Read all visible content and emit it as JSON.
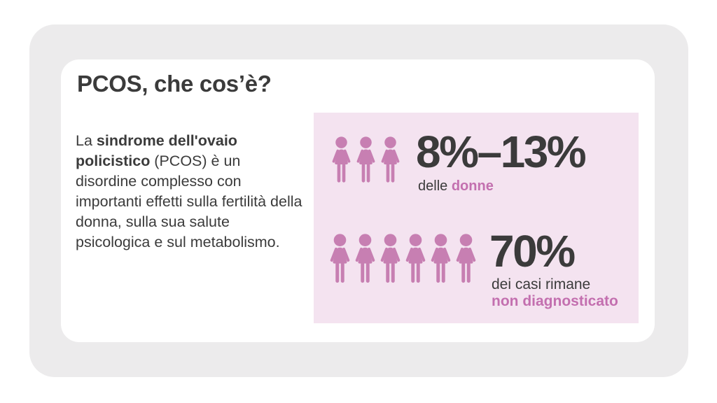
{
  "colors": {
    "frame_gray": "#ECEBEC",
    "card_bg": "#FFFFFF",
    "panel_pink": "#F4E3F0",
    "icon_pink": "#C77FB2",
    "accent_pink": "#C36FAF",
    "text_dark": "#3B3B3B"
  },
  "card": {
    "title": "PCOS, che cos’è?",
    "intro": {
      "lead": "La ",
      "bold": "sindrome dell'ovaio policistico",
      "rest": " (PCOS) è un disordine complesso con importanti effetti sulla fertilità della donna, sulla sua salute psicologica e sul metabolismo."
    }
  },
  "stats_panel": {
    "stats": [
      {
        "value": "8%–13%",
        "caption_plain": "delle",
        "caption_accent": "donne",
        "icon": "woman-icon",
        "icon_count": 3
      },
      {
        "value": "70%",
        "caption_plain": "dei casi rimane",
        "caption_accent": "non diagnosticato",
        "icon": "woman-icon",
        "icon_count": 6
      }
    ]
  }
}
